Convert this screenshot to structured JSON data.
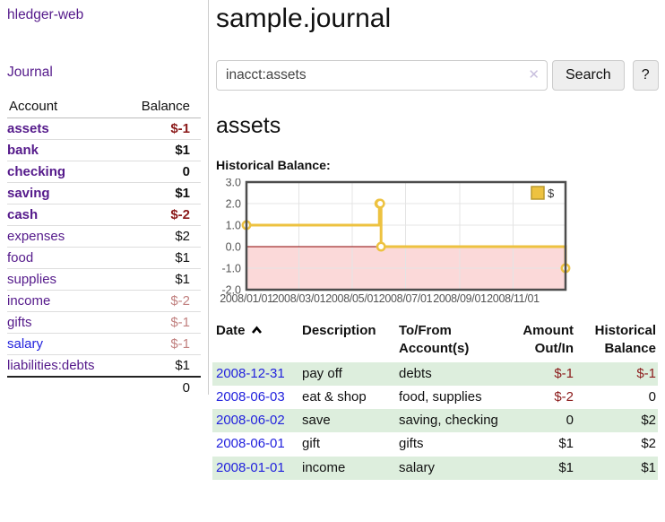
{
  "colors": {
    "link_purple": "#551a8b",
    "link_blue": "#2222dd",
    "negative_strong": "#8b1a1a",
    "negative_soft": "#c1807f",
    "row_green": "#ddeedd",
    "chart_yellow": "#edc240"
  },
  "sidebar": {
    "brand": "hledger-web",
    "journal_link": "Journal",
    "accounts": {
      "header": {
        "account": "Account",
        "balance": "Balance"
      },
      "rows": [
        {
          "name": "assets",
          "balance": "$-1"
        },
        {
          "name": "bank",
          "balance": "$1"
        },
        {
          "name": "checking",
          "balance": "0"
        },
        {
          "name": "saving",
          "balance": "$1"
        },
        {
          "name": "cash",
          "balance": "$-2"
        },
        {
          "name": "expenses",
          "balance": "$2"
        },
        {
          "name": "food",
          "balance": "$1"
        },
        {
          "name": "supplies",
          "balance": "$1"
        },
        {
          "name": "income",
          "balance": "$-2"
        },
        {
          "name": "gifts",
          "balance": "$-1"
        },
        {
          "name": "salary",
          "balance": "$-1"
        },
        {
          "name": "liabilities:debts",
          "balance": "$1"
        }
      ],
      "total": "0"
    }
  },
  "main": {
    "title": "sample.journal",
    "search": {
      "value": "inacct:assets",
      "clear_icon": "✕",
      "search_label": "Search",
      "help_label": "?"
    },
    "account_title": "assets",
    "section_label": "Historical Balance:"
  },
  "chart_data": {
    "type": "line",
    "step": true,
    "title": "Historical Balance",
    "legend": {
      "label": "$",
      "position": "top-right"
    },
    "series": [
      {
        "name": "$",
        "color": "#edc240",
        "points": [
          [
            "2008/01/01",
            1
          ],
          [
            "2008/06/01",
            2
          ],
          [
            "2008/06/02",
            2
          ],
          [
            "2008/06/03",
            0
          ],
          [
            "2008/12/31",
            -1
          ]
        ]
      }
    ],
    "xlim": [
      "2008/01/01",
      "2008/12/31"
    ],
    "ylim": [
      -2,
      3
    ],
    "x_ticks": [
      "2008/01/01",
      "2008/03/01",
      "2008/05/01",
      "2008/07/01",
      "2008/09/01",
      "2008/11/01"
    ],
    "y_ticks": [
      "3.0",
      "2.0",
      "1.0",
      "0.0",
      "-1.0",
      "-2.0"
    ],
    "grid": true,
    "negative_region_color": "#fbd9d9",
    "zero_line_color": "#8b0000",
    "frame_color": "#4d4d4d",
    "tick_text_color": "#545454"
  },
  "register": {
    "columns": {
      "date": "Date",
      "description": "Description",
      "accounts": "To/From Account(s)",
      "amount": "Amount Out/In",
      "balance": "Historical Balance"
    },
    "rows": [
      {
        "date": "2008-12-31",
        "description": "pay off",
        "accounts": "debts",
        "amount": "$-1",
        "balance": "$-1"
      },
      {
        "date": "2008-06-03",
        "description": "eat & shop",
        "accounts": "food, supplies",
        "amount": "$-2",
        "balance": "0"
      },
      {
        "date": "2008-06-02",
        "description": "save",
        "accounts": "saving, checking",
        "amount": "0",
        "balance": "$2"
      },
      {
        "date": "2008-06-01",
        "description": "gift",
        "accounts": "gifts",
        "amount": "$1",
        "balance": "$2"
      },
      {
        "date": "2008-01-01",
        "description": "income",
        "accounts": "salary",
        "amount": "$1",
        "balance": "$1"
      }
    ]
  }
}
